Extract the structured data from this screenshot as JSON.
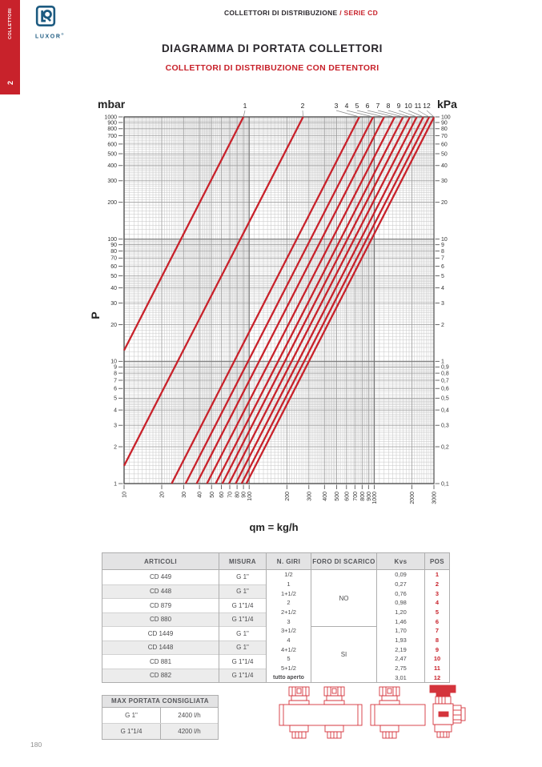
{
  "accent_color": "#c8222b",
  "logo_color": "#1c5a80",
  "sidebar": {
    "number": "2",
    "label": "COLLETTORI"
  },
  "logo": {
    "brand": "LUXOR",
    "registered": "®"
  },
  "header": {
    "breadcrumb_main": "COLLETTORI DI DISTRIBUZIONE ",
    "breadcrumb_accent": "/ SERIE CD"
  },
  "titles": {
    "title": "DIAGRAMMA DI PORTATA COLLETTORI",
    "subtitle": "COLLETTORI DI DISTRIBUZIONE CON DETENTORI"
  },
  "chart_data": {
    "type": "line",
    "title": "",
    "x_axis": {
      "label": "qm = kg/h",
      "scale": "log",
      "range": [
        10,
        3000
      ],
      "ticks": [
        "10",
        "20",
        "30",
        "40",
        "50",
        "60",
        "70",
        "80",
        "90",
        "100",
        "200",
        "300",
        "400",
        "500",
        "600",
        "700",
        "800",
        "900",
        "1000",
        "2000",
        "3000"
      ]
    },
    "y_axis_left": {
      "unit": "mbar",
      "axis_label": "P",
      "scale": "log",
      "range": [
        1,
        1000
      ],
      "ticks": [
        "1000",
        "900",
        "800",
        "700",
        "600",
        "500",
        "400",
        "300",
        "200",
        "100",
        "90",
        "80",
        "70",
        "60",
        "50",
        "40",
        "30",
        "20",
        "10",
        "9",
        "8",
        "7",
        "6",
        "5",
        "4",
        "3",
        "2",
        "1"
      ]
    },
    "y_axis_right": {
      "unit": "kPa",
      "scale": "log",
      "range": [
        0.1,
        100
      ],
      "ticks": [
        "100",
        "90",
        "80",
        "70",
        "60",
        "50",
        "40",
        "30",
        "20",
        "10",
        "9",
        "8",
        "7",
        "6",
        "5",
        "4",
        "3",
        "2",
        "1",
        "0,9",
        "0,8",
        "0,7",
        "0,6",
        "0,5",
        "0,4",
        "0,3",
        "0,2",
        "0,1"
      ]
    },
    "series": [
      {
        "label": "1",
        "kvs": 0.09,
        "points": [
          [
            10,
            12.3
          ],
          [
            90,
            1000
          ]
        ]
      },
      {
        "label": "2",
        "kvs": 0.27,
        "points": [
          [
            10,
            1.4
          ],
          [
            270,
            1000
          ]
        ]
      },
      {
        "label": "3",
        "kvs": 0.76,
        "points": [
          [
            24,
            1
          ],
          [
            760,
            1000
          ]
        ]
      },
      {
        "label": "4",
        "kvs": 0.98,
        "points": [
          [
            31,
            1
          ],
          [
            980,
            1000
          ]
        ]
      },
      {
        "label": "5",
        "kvs": 1.2,
        "points": [
          [
            38,
            1
          ],
          [
            1200,
            1000
          ]
        ]
      },
      {
        "label": "6",
        "kvs": 1.46,
        "points": [
          [
            46,
            1
          ],
          [
            1460,
            1000
          ]
        ]
      },
      {
        "label": "7",
        "kvs": 1.7,
        "points": [
          [
            54,
            1
          ],
          [
            1700,
            1000
          ]
        ]
      },
      {
        "label": "8",
        "kvs": 1.93,
        "points": [
          [
            61,
            1
          ],
          [
            1930,
            1000
          ]
        ]
      },
      {
        "label": "9",
        "kvs": 2.19,
        "points": [
          [
            69,
            1
          ],
          [
            2190,
            1000
          ]
        ]
      },
      {
        "label": "10",
        "kvs": 2.47,
        "points": [
          [
            78,
            1
          ],
          [
            2470,
            1000
          ]
        ]
      },
      {
        "label": "11",
        "kvs": 2.75,
        "points": [
          [
            87,
            1
          ],
          [
            2750,
            1000
          ]
        ]
      },
      {
        "label": "12",
        "kvs": 3.01,
        "points": [
          [
            95,
            1
          ],
          [
            3000,
            993
          ]
        ]
      }
    ]
  },
  "flow_table": {
    "headers": [
      "ARTICOLI",
      "MISURA",
      "N. GIRI",
      "FORO DI SCARICO",
      "Kvs",
      "POS"
    ],
    "articles": [
      {
        "code": "CD 449",
        "size": "G 1\""
      },
      {
        "code": "CD 448",
        "size": "G 1\""
      },
      {
        "code": "CD 879",
        "size": "G 1\"1/4"
      },
      {
        "code": "CD 880",
        "size": "G 1\"1/4"
      },
      {
        "code": "CD 1449",
        "size": "G 1\""
      },
      {
        "code": "CD 1448",
        "size": "G 1\""
      },
      {
        "code": "CD 881",
        "size": "G 1\"1/4"
      },
      {
        "code": "CD 882",
        "size": "G 1\"1/4"
      }
    ],
    "giri": [
      "1/2",
      "1",
      "1+1/2",
      "2",
      "2+1/2",
      "3",
      "3+1/2",
      "4",
      "4+1/2",
      "5",
      "5+1/2",
      "tutto aperto"
    ],
    "foro_di_scarico": [
      "NO",
      "SI"
    ],
    "kvs": [
      "0,09",
      "0,27",
      "0,76",
      "0,98",
      "1,20",
      "1,46",
      "1,70",
      "1,93",
      "2,19",
      "2,47",
      "2,75",
      "3,01"
    ],
    "pos": [
      "1",
      "2",
      "3",
      "4",
      "5",
      "6",
      "7",
      "8",
      "9",
      "10",
      "11",
      "12"
    ]
  },
  "max_table": {
    "title": "MAX PORTATA CONSIGLIATA",
    "rows": [
      [
        "G 1\"",
        "2400 l/h"
      ],
      [
        "G 1\"1/4",
        "4200 l/h"
      ]
    ]
  },
  "footer": {
    "page_number": "180"
  }
}
